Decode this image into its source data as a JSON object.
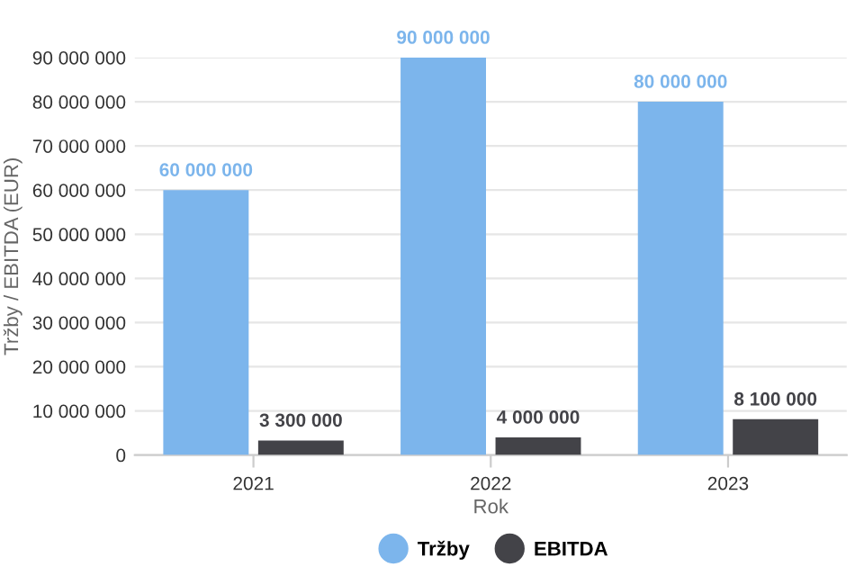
{
  "chart_data": {
    "type": "bar",
    "xlabel": "Rok",
    "ylabel": "Tržby / EBITDA (EUR)",
    "categories": [
      "2021",
      "2022",
      "2023"
    ],
    "series": [
      {
        "name": "Tržby",
        "color": "#7cb5ec",
        "values": [
          60000000,
          90000000,
          80000000
        ],
        "value_labels": [
          "60 000 000",
          "90 000 000",
          "80 000 000"
        ]
      },
      {
        "name": "EBITDA",
        "color": "#434348",
        "values": [
          3300000,
          4000000,
          8100000
        ],
        "value_labels": [
          "3 300 000",
          "4 000 000",
          "8 100 000"
        ]
      }
    ],
    "ylim": [
      0,
      90000000
    ],
    "yticks": [
      0,
      {
        "value": 10000000,
        "label": "10 000 000"
      },
      {
        "value": 20000000,
        "label": "20 000 000"
      },
      {
        "value": 30000000,
        "label": "30 000 000"
      },
      {
        "value": 40000000,
        "label": "40 000 000"
      },
      {
        "value": 50000000,
        "label": "50 000 000"
      },
      {
        "value": 60000000,
        "label": "60 000 000"
      },
      {
        "value": 70000000,
        "label": "70 000 000"
      },
      {
        "value": 80000000,
        "label": "80 000 000"
      },
      {
        "value": 90000000,
        "label": "90 000 000"
      }
    ],
    "grid": "y",
    "legend": "bottom"
  }
}
